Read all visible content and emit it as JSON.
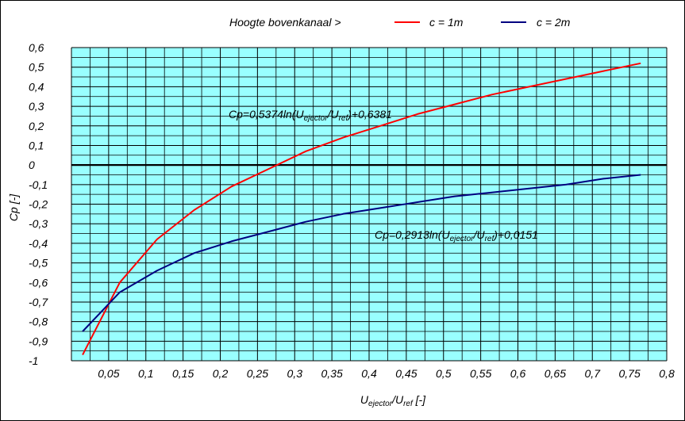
{
  "chart_data": {
    "type": "line",
    "legend": {
      "prefix": "Hoogte bovenkanaal >",
      "placement": "top"
    },
    "xlabel_parts": [
      {
        "t": "U",
        "sub": false
      },
      {
        "t": "ejector",
        "sub": true
      },
      {
        "t": "/U",
        "sub": false
      },
      {
        "t": "ref",
        "sub": true
      },
      {
        "t": " [-]",
        "sub": false
      }
    ],
    "ylabel": "Cp [-]",
    "xlim": [
      0,
      0.8
    ],
    "ylim": [
      -1,
      0.6
    ],
    "xticks": [
      {
        "v": 0.05,
        "label": "0,05"
      },
      {
        "v": 0.1,
        "label": "0,1"
      },
      {
        "v": 0.15,
        "label": "0,15"
      },
      {
        "v": 0.2,
        "label": "0,2"
      },
      {
        "v": 0.25,
        "label": "0,25"
      },
      {
        "v": 0.3,
        "label": "0,3"
      },
      {
        "v": 0.35,
        "label": "0,35"
      },
      {
        "v": 0.4,
        "label": "0,4"
      },
      {
        "v": 0.45,
        "label": "0,45"
      },
      {
        "v": 0.5,
        "label": "0,5"
      },
      {
        "v": 0.55,
        "label": "0,55"
      },
      {
        "v": 0.6,
        "label": "0,6"
      },
      {
        "v": 0.65,
        "label": "0,65"
      },
      {
        "v": 0.7,
        "label": "0,7"
      },
      {
        "v": 0.75,
        "label": "0,75"
      },
      {
        "v": 0.8,
        "label": "0,8"
      }
    ],
    "yticks": [
      {
        "v": 0.6,
        "label": "0,6"
      },
      {
        "v": 0.5,
        "label": "0,5"
      },
      {
        "v": 0.4,
        "label": "0,4"
      },
      {
        "v": 0.3,
        "label": "0,3"
      },
      {
        "v": 0.2,
        "label": "0,2"
      },
      {
        "v": 0.1,
        "label": "0,1"
      },
      {
        "v": 0,
        "label": "0"
      },
      {
        "v": -0.1,
        "label": "-0,1"
      },
      {
        "v": -0.2,
        "label": "-0,2"
      },
      {
        "v": -0.3,
        "label": "-0,3"
      },
      {
        "v": -0.4,
        "label": "-0,4"
      },
      {
        "v": -0.5,
        "label": "-0,5"
      },
      {
        "v": -0.6,
        "label": "-0,6"
      },
      {
        "v": -0.7,
        "label": "-0,7"
      },
      {
        "v": -0.8,
        "label": "-0,8"
      },
      {
        "v": -0.9,
        "label": "-0,9"
      },
      {
        "v": -1,
        "label": "-1"
      }
    ],
    "grid": true,
    "series": [
      {
        "name": "c = 1m",
        "color": "#ff0000",
        "x": [
          0.015,
          0.065,
          0.115,
          0.165,
          0.215,
          0.265,
          0.315,
          0.365,
          0.415,
          0.465,
          0.515,
          0.565,
          0.615,
          0.665,
          0.715,
          0.765
        ],
        "y": [
          -0.97,
          -0.6,
          -0.38,
          -0.23,
          -0.11,
          -0.02,
          0.07,
          0.14,
          0.2,
          0.26,
          0.31,
          0.36,
          0.4,
          0.44,
          0.48,
          0.52
        ]
      },
      {
        "name": "c = 2m",
        "color": "#000080",
        "x": [
          0.015,
          0.065,
          0.115,
          0.165,
          0.215,
          0.265,
          0.315,
          0.365,
          0.415,
          0.465,
          0.515,
          0.565,
          0.615,
          0.665,
          0.715,
          0.765
        ],
        "y": [
          -0.85,
          -0.65,
          -0.54,
          -0.45,
          -0.39,
          -0.34,
          -0.29,
          -0.25,
          -0.22,
          -0.19,
          -0.16,
          -0.14,
          -0.12,
          -0.1,
          -0.07,
          -0.05
        ]
      }
    ],
    "equations": [
      {
        "parts": [
          {
            "t": "Cp=0,5374ln(U",
            "sub": false
          },
          {
            "t": "ejector",
            "sub": true
          },
          {
            "t": "/U",
            "sub": false
          },
          {
            "t": "ref",
            "sub": true
          },
          {
            "t": ")+0,6381",
            "sub": false
          }
        ]
      },
      {
        "parts": [
          {
            "t": "Cp=0,2913ln(U",
            "sub": false
          },
          {
            "t": "ejector",
            "sub": true
          },
          {
            "t": "/U",
            "sub": false
          },
          {
            "t": "ref",
            "sub": true
          },
          {
            "t": ")+0,0151",
            "sub": false
          }
        ]
      }
    ],
    "colors": {
      "plot_background": "#99ffff",
      "gridline": "#000000"
    }
  }
}
